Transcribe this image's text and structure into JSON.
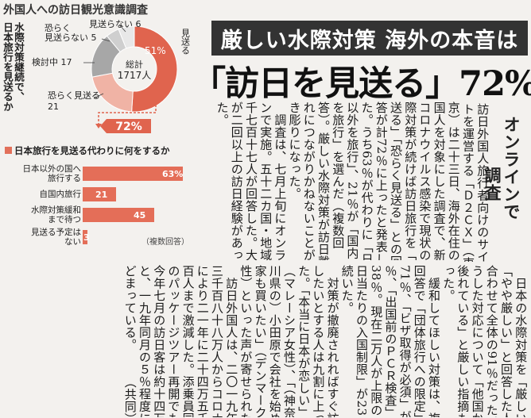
{
  "headline": {
    "top": "厳しい水際対策 海外の本音は",
    "main": "「訪日を見送る」72%"
  },
  "subheads": [
    "オンラインで",
    "調査"
  ],
  "body_columns": [
    "訪日外国人旅行者向けのサイ",
    "トを運営する「Ｄ２ＣＸ」（東",
    "京）は二十三日、海外在住の外",
    "国人を対象にした調査で、新型",
    "コロナウイルス感染で現状の水",
    "際対策が続けば訪日旅行を「見",
    "送る」「恐らく見送る」との回",
    "答が計72％に上ったと発表し",
    "た。うち63％が代わりに「日本",
    "以外を旅行」、21％が「国内",
    "を旅行」を選んだ（複数回",
    "答）。厳しい水際対策が訪日離",
    "れにつながりかねないことが浮",
    "き彫りになった。",
    "　調査は、七月上旬にオンライ",
    "ンで実施。五十二カ国・地域の",
    "千七百十七人が回答した。大半",
    "が二回以上の訪日経験があっ",
    "た。",
    "　日本の水際対策を「厳しい」",
    "「やや厳しい」と回答した人は",
    "合わせて全体の91％だった。こ",
    "うした対応について「他国から",
    "後れている」と厳しい指摘もあ",
    "った。",
    "　緩和してほしい対策は、複数",
    "回答で「団体旅行への限定」が",
    "71％、「ビザ取得が必須」が39",
    "％、「出国前のＰＣＲ検査」が",
    "38％。現在二万人が上限の「一",
    "日当たりの入国制限」が23％と",
    "続いた。",
    "　対策が撤廃されればすぐ訪日",
    "したいとする人は九割に上っ",
    "た。「本当に日本が恋しい」",
    "（マレーシア女性）、「（神奈",
    "川県の）小田原で会社を始めて",
    "家も買いたい」（デンマーク男",
    "性）といった声が寄せられた。",
    "　訪日外国人は、二〇一九年の",
    "三千百八十八万人からコロナ禍",
    "により二一年に二十四万五千九",
    "百人まで激減した。添乗員同行",
    "のパッケージツアー再開でも、",
    "今年七月の訪日客は約十四万人",
    "と、一九年同月の５％程度にと",
    "どまっている。　　　（共同）"
  ],
  "graphic": {
    "title": "外国人への訪日観光意識調査",
    "side_caption": "水際対策継続で、\n日本旅行を見送るか",
    "total_label": "総計\n1717人",
    "callout": "72%",
    "note": "（複数回答）"
  },
  "chart_data": [
    {
      "type": "pie",
      "title": "外国人への訪日観光意識調査",
      "total": "1717人",
      "categories": [
        "見送る",
        "恐らく見送る",
        "検討中",
        "恐らく見送らない",
        "見送らない"
      ],
      "values": [
        51,
        21,
        17,
        5,
        6
      ],
      "value_labels": [
        "51%",
        "21",
        "17",
        "5",
        "6"
      ],
      "colors": [
        "#e0644e",
        "#f0b3a5",
        "#a7a7a7",
        "#cfcfcf",
        "#e8e8e8"
      ]
    },
    {
      "type": "bar",
      "title": "日本旅行を見送る代わりに何をするか",
      "categories": [
        "日本以外の国へ旅行する",
        "自国内旅行",
        "水際対策緩和まで待つ",
        "見送る予定はない"
      ],
      "category_lines": [
        [
          "日本以外の国へ",
          "旅行する"
        ],
        [
          "自国内旅行"
        ],
        [
          "水際対策緩和",
          "まで待つ"
        ],
        [
          "見送る予定は",
          "ない"
        ]
      ],
      "values": [
        63,
        21,
        45,
        3
      ],
      "value_labels": [
        "63%",
        "21",
        "45",
        "3"
      ],
      "note": "（複数回答）",
      "colors": {
        "bar": "#e46e58"
      }
    }
  ]
}
